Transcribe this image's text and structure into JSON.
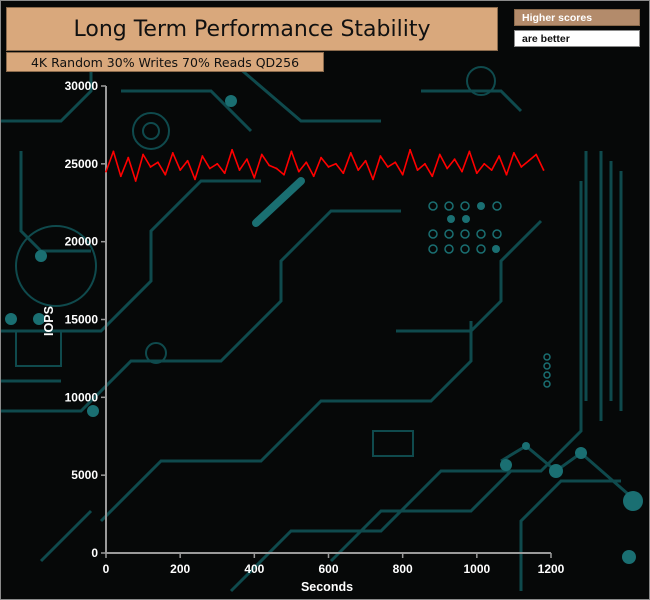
{
  "chart_data": {
    "type": "line",
    "title": "Long Term Performance Stability",
    "subtitle": "4K Random 30% Writes 70% Reads QD256",
    "note": [
      "Higher scores",
      "are better"
    ],
    "xlabel": "Seconds",
    "ylabel": "IOPS",
    "xlim": [
      0,
      1200
    ],
    "ylim": [
      0,
      30000
    ],
    "x_ticks": [
      "0",
      "200",
      "400",
      "600",
      "800",
      "1000",
      "1200"
    ],
    "y_ticks": [
      "0",
      "5000",
      "10000",
      "15000",
      "20000",
      "25000",
      "30000"
    ],
    "grid": false,
    "legend": "none",
    "series": [
      {
        "color": "#ff0000",
        "x": [
          0,
          20,
          40,
          60,
          80,
          100,
          120,
          140,
          160,
          180,
          200,
          220,
          240,
          260,
          280,
          300,
          320,
          340,
          360,
          380,
          400,
          420,
          440,
          460,
          480,
          500,
          520,
          540,
          560,
          580,
          600,
          620,
          640,
          660,
          680,
          700,
          720,
          740,
          760,
          780,
          800,
          820,
          840,
          860,
          880,
          900,
          920,
          940,
          960,
          980,
          1000,
          1020,
          1040,
          1060,
          1080,
          1100,
          1120,
          1140,
          1160,
          1180
        ],
        "values": [
          24500,
          25800,
          24200,
          25400,
          23900,
          25600,
          24800,
          25100,
          24300,
          25700,
          24600,
          25200,
          24000,
          25500,
          24700,
          25000,
          24400,
          25900,
          24600,
          25300,
          24100,
          25600,
          24900,
          24700,
          24300,
          25800,
          24500,
          25100,
          24200,
          25400,
          24800,
          25000,
          24400,
          25700,
          24600,
          25200,
          24000,
          25500,
          24800,
          25100,
          24300,
          25900,
          24600,
          25000,
          24200,
          25600,
          24700,
          25300,
          24500,
          25800,
          24400,
          25000,
          24600,
          25500,
          24300,
          25700,
          24800,
          25200,
          25600,
          24600
        ]
      }
    ]
  }
}
